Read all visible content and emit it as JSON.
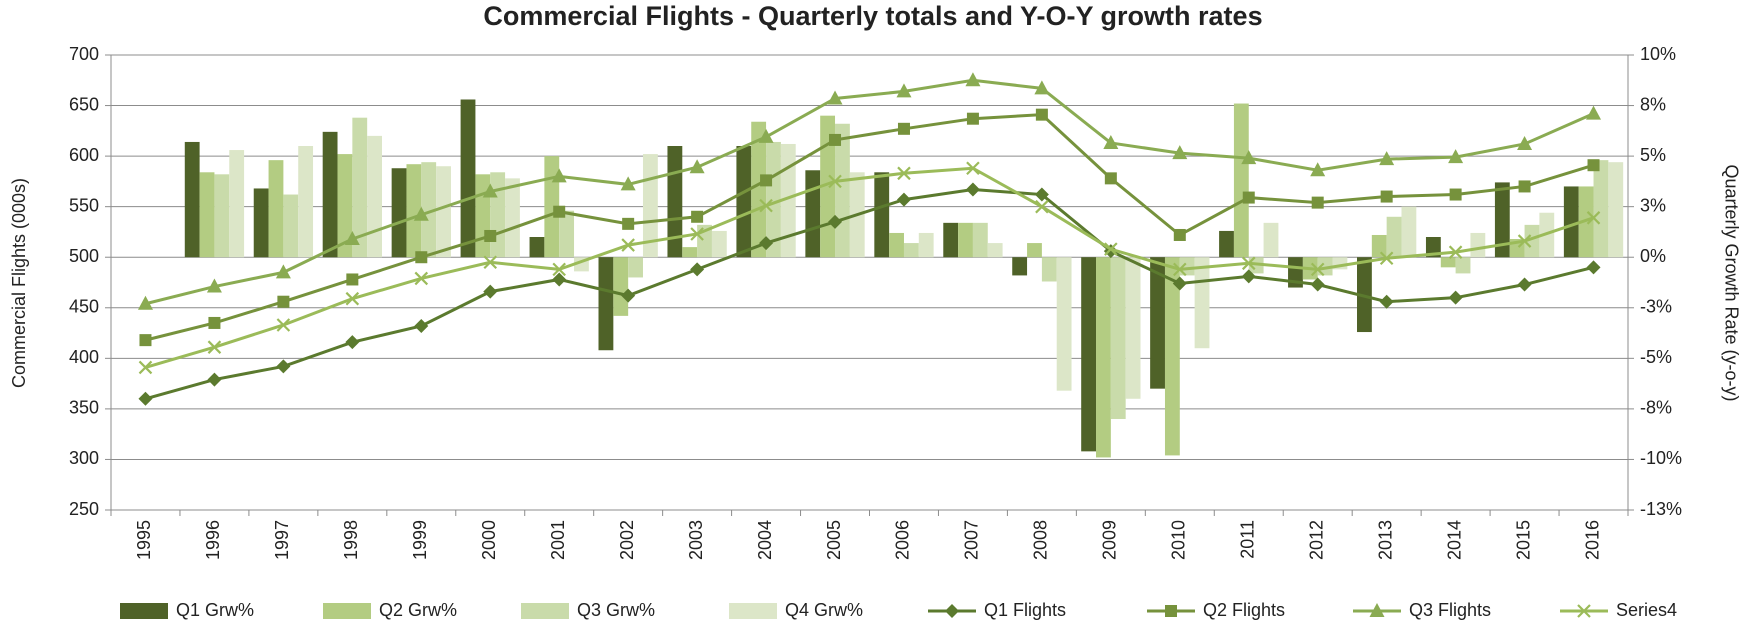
{
  "chart_data": {
    "type": "combo",
    "title": "Commercial Flights - Quarterly totals and Y-O-Y growth rates",
    "y_label": "Commercial Flights (000s)",
    "y2_label": "Quarterly Growth Rate (y-o-y)",
    "categories": [
      "1995",
      "1996",
      "1997",
      "1998",
      "1999",
      "2000",
      "2001",
      "2002",
      "2003",
      "2004",
      "2005",
      "2006",
      "2007",
      "2008",
      "2009",
      "2010",
      "2011",
      "2012",
      "2013",
      "2014",
      "2015",
      "2016"
    ],
    "ylim": [
      250,
      700
    ],
    "yticks": [
      250,
      300,
      350,
      400,
      450,
      500,
      550,
      600,
      650,
      700
    ],
    "y2lim": [
      -12.5,
      10
    ],
    "y2ticks": [
      {
        "value": -12.5,
        "label": "-13%"
      },
      {
        "value": -10,
        "label": "-10%"
      },
      {
        "value": -7.5,
        "label": "-8%"
      },
      {
        "value": -5,
        "label": "-5%"
      },
      {
        "value": -2.5,
        "label": "-3%"
      },
      {
        "value": 0,
        "label": "0%"
      },
      {
        "value": 2.5,
        "label": "3%"
      },
      {
        "value": 5,
        "label": "5%"
      },
      {
        "value": 7.5,
        "label": "8%"
      },
      {
        "value": 10,
        "label": "10%"
      }
    ],
    "grid": true,
    "legend": "bottom",
    "series": [
      {
        "name": "Q1 Grw%",
        "type": "bar",
        "axis": "y2",
        "color": "#4f6228",
        "values": [
          null,
          5.7,
          3.4,
          6.2,
          4.4,
          7.8,
          1.0,
          -4.6,
          5.5,
          5.5,
          4.3,
          4.2,
          1.7,
          -0.9,
          -9.6,
          -6.5,
          1.3,
          -1.5,
          -3.7,
          1.0,
          3.7,
          3.5
        ]
      },
      {
        "name": "Q2 Grw%",
        "type": "bar",
        "axis": "y2",
        "color": "#b3cc82",
        "values": [
          null,
          4.2,
          4.8,
          5.1,
          4.6,
          4.1,
          5.0,
          -2.9,
          0.5,
          6.7,
          7.0,
          1.2,
          1.7,
          0.7,
          -9.9,
          -9.8,
          7.6,
          -1.1,
          1.1,
          -0.5,
          0.9,
          3.5
        ]
      },
      {
        "name": "Q3 Grw%",
        "type": "bar",
        "axis": "y2",
        "color": "#c9dbaa",
        "values": [
          null,
          4.1,
          3.1,
          6.9,
          4.7,
          4.2,
          2.3,
          -1.0,
          1.6,
          5.7,
          6.6,
          0.7,
          1.7,
          -1.2,
          -8.0,
          -0.9,
          -0.8,
          -0.9,
          2.0,
          -0.8,
          1.6,
          4.8
        ]
      },
      {
        "name": "Q4 Grw%",
        "type": "bar",
        "axis": "y2",
        "color": "#dce6c8",
        "values": [
          null,
          5.3,
          5.5,
          6.0,
          4.5,
          3.9,
          -0.7,
          5.1,
          1.3,
          5.6,
          4.2,
          1.2,
          0.7,
          -6.6,
          -7.0,
          -4.5,
          1.7,
          -0.6,
          2.5,
          1.2,
          2.2,
          4.7
        ]
      },
      {
        "name": "Q1 Flights",
        "type": "line",
        "marker": "diamond",
        "color": "#5b7a2e",
        "values": [
          360,
          379,
          392,
          416,
          432,
          466,
          478,
          462,
          488,
          514,
          535,
          557,
          567,
          562,
          506,
          474,
          481,
          473,
          456,
          460,
          473,
          490
        ]
      },
      {
        "name": "Q2 Flights",
        "type": "line",
        "marker": "square",
        "color": "#76923c",
        "values": [
          418,
          435,
          456,
          478,
          500,
          521,
          545,
          533,
          540,
          576,
          616,
          627,
          637,
          641,
          578,
          522,
          559,
          554,
          560,
          562,
          570,
          591
        ]
      },
      {
        "name": "Q3 Flights",
        "type": "line",
        "marker": "triangle",
        "color": "#8aab52",
        "values": [
          454,
          471,
          485,
          518,
          542,
          565,
          580,
          572,
          589,
          619,
          657,
          664,
          675,
          667,
          613,
          603,
          598,
          586,
          597,
          599,
          612,
          642
        ]
      },
      {
        "name": "Series4",
        "type": "line",
        "marker": "x",
        "color": "#9bbb59",
        "values": [
          391,
          411,
          433,
          459,
          479,
          495,
          488,
          512,
          523,
          551,
          575,
          583,
          588,
          550,
          508,
          488,
          494,
          488,
          499,
          505,
          516,
          539
        ]
      }
    ]
  }
}
